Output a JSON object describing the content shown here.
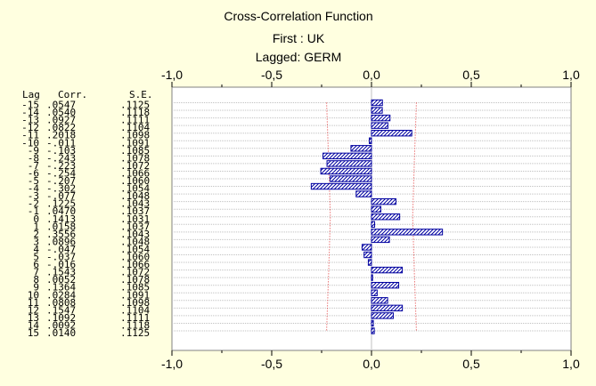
{
  "chart_data": {
    "type": "bar",
    "orientation": "horizontal",
    "title": "Cross-Correlation Function",
    "subtitle_first": "First : UK",
    "subtitle_lagged": "Lagged: GERM",
    "table_headers": {
      "lag": "Lag",
      "corr": "Corr.",
      "se": "S.E."
    },
    "xlim": [
      -1.0,
      1.0
    ],
    "x_ticks": [
      -1.0,
      -0.5,
      0.0,
      0.5,
      1.0
    ],
    "x_tick_labels": [
      "-1,0",
      "-0,5",
      "0,0",
      "0,5",
      "1,0"
    ],
    "rows": [
      {
        "lag": "-15",
        "corr": ".0547",
        "se": ".1125",
        "value": 0.0547
      },
      {
        "lag": "-14",
        "corr": ".0540",
        "se": ".1118",
        "value": 0.054
      },
      {
        "lag": "-13",
        "corr": ".0927",
        "se": ".1111",
        "value": 0.0927
      },
      {
        "lag": "-12",
        "corr": ".0822",
        "se": ".1104",
        "value": 0.0822
      },
      {
        "lag": "-11",
        "corr": ".2018",
        "se": ".1098",
        "value": 0.2018
      },
      {
        "lag": "-10",
        "corr": "-.011",
        "se": ".1091",
        "value": -0.011
      },
      {
        "lag": "-9",
        "corr": "-.103",
        "se": ".1085",
        "value": -0.103
      },
      {
        "lag": "-8",
        "corr": "-.243",
        "se": ".1078",
        "value": -0.243
      },
      {
        "lag": "-7",
        "corr": "-.223",
        "se": ".1072",
        "value": -0.223
      },
      {
        "lag": "-6",
        "corr": "-.254",
        "se": ".1066",
        "value": -0.254
      },
      {
        "lag": "-5",
        "corr": "-.207",
        "se": ".1060",
        "value": -0.207
      },
      {
        "lag": "-4",
        "corr": "-.302",
        "se": ".1054",
        "value": -0.302
      },
      {
        "lag": "-3",
        "corr": "-.077",
        "se": ".1048",
        "value": -0.077
      },
      {
        "lag": "-2",
        "corr": ".1225",
        "se": ".1043",
        "value": 0.1225
      },
      {
        "lag": "-1",
        "corr": ".0470",
        "se": ".1037",
        "value": 0.047
      },
      {
        "lag": "0",
        "corr": ".1413",
        "se": ".1031",
        "value": 0.1413
      },
      {
        "lag": "1",
        "corr": ".0158",
        "se": ".1037",
        "value": 0.0158
      },
      {
        "lag": "2",
        "corr": ".3556",
        "se": ".1043",
        "value": 0.3556
      },
      {
        "lag": "3",
        "corr": ".0896",
        "se": ".1048",
        "value": 0.0896
      },
      {
        "lag": "4",
        "corr": "-.047",
        "se": ".1054",
        "value": -0.047
      },
      {
        "lag": "5",
        "corr": "-.037",
        "se": ".1060",
        "value": -0.037
      },
      {
        "lag": "6",
        "corr": "-.016",
        "se": ".1066",
        "value": -0.016
      },
      {
        "lag": "7",
        "corr": ".1543",
        "se": ".1072",
        "value": 0.1543
      },
      {
        "lag": "8",
        "corr": ".0052",
        "se": ".1078",
        "value": 0.0052
      },
      {
        "lag": "9",
        "corr": ".1364",
        "se": ".1085",
        "value": 0.1364
      },
      {
        "lag": "10",
        "corr": ".0284",
        "se": ".1091",
        "value": 0.0284
      },
      {
        "lag": "11",
        "corr": ".0808",
        "se": ".1098",
        "value": 0.0808
      },
      {
        "lag": "12",
        "corr": ".1547",
        "se": ".1104",
        "value": 0.1547
      },
      {
        "lag": "13",
        "corr": ".1092",
        "se": ".1111",
        "value": 0.1092
      },
      {
        "lag": "14",
        "corr": ".0092",
        "se": ".1118",
        "value": 0.0092
      },
      {
        "lag": "15",
        "corr": ".0140",
        "se": ".1125",
        "value": 0.014
      }
    ],
    "grid": true,
    "confidence_band_style": "dotted",
    "colors": {
      "background": "#ffffe0",
      "plot_background": "#ffffff",
      "bar_stroke": "#0000a0",
      "bar_hatch": "#0000a0",
      "grid": "#c0c0c0",
      "confidence_band": "#e03030",
      "zero_line": "#0000a0"
    }
  }
}
